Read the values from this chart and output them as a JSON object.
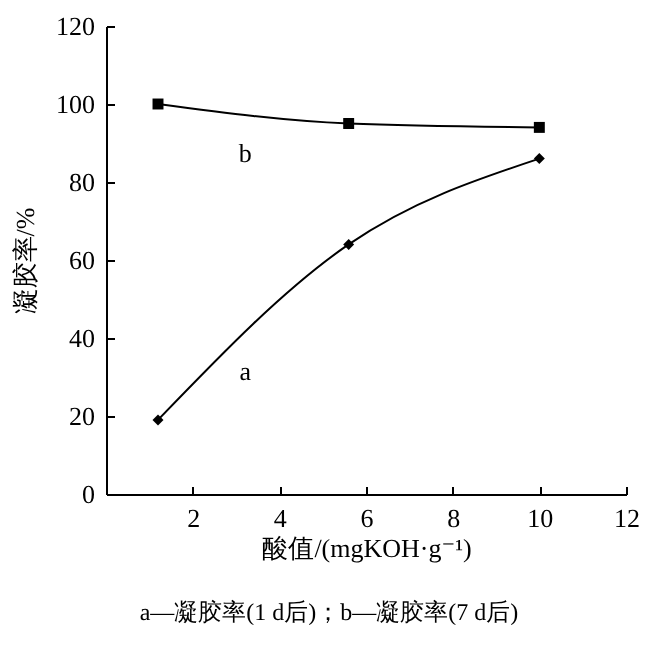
{
  "chart_data": {
    "type": "line",
    "xlabel": "酸值/(mgKOH·g⁻¹)",
    "ylabel": "凝胶率/%",
    "xlim": [
      0,
      12
    ],
    "xticks": [
      2,
      4,
      6,
      8,
      10,
      12
    ],
    "ylim": [
      0,
      120
    ],
    "yticks": [
      0,
      20,
      40,
      60,
      80,
      100,
      120
    ],
    "line_style": "solid",
    "series": [
      {
        "name": "a",
        "color": "#000000",
        "marker": "diamond",
        "x": [
          1.2,
          5.6,
          10
        ],
        "values": [
          19,
          64,
          86
        ]
      },
      {
        "name": "b",
        "color": "#000000",
        "marker": "square",
        "x": [
          1.2,
          5.6,
          10
        ],
        "values": [
          100,
          95,
          94
        ]
      }
    ],
    "annotations": [
      "a—凝胶率(1 d后)；b—凝胶率(7 d后)"
    ]
  }
}
